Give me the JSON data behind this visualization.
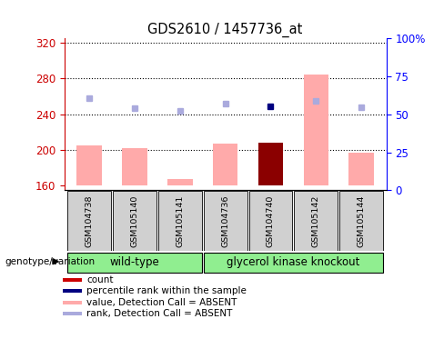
{
  "title": "GDS2610 / 1457736_at",
  "samples": [
    "GSM104738",
    "GSM105140",
    "GSM105141",
    "GSM104736",
    "GSM104740",
    "GSM105142",
    "GSM105144"
  ],
  "bar_values": [
    205,
    202,
    168,
    207,
    208,
    285,
    197
  ],
  "bar_colors": [
    "#ffaaaa",
    "#ffaaaa",
    "#ffaaaa",
    "#ffaaaa",
    "#8b0000",
    "#ffaaaa",
    "#ffaaaa"
  ],
  "rank_dots": [
    258,
    247,
    244,
    252,
    249,
    255,
    248
  ],
  "rank_dot_colors": [
    "#aaaadd",
    "#aaaadd",
    "#aaaadd",
    "#aaaadd",
    "#000080",
    "#aaaadd",
    "#aaaadd"
  ],
  "ylim_left": [
    155,
    325
  ],
  "ylim_right": [
    0,
    100
  ],
  "yticks_left": [
    160,
    200,
    240,
    280,
    320
  ],
  "yticks_right": [
    0,
    25,
    50,
    75,
    100
  ],
  "ytick_labels_right": [
    "0",
    "25",
    "50",
    "75",
    "100%"
  ],
  "group1_label": "wild-type",
  "group2_label": "glycerol kinase knockout",
  "group1_indices": [
    0,
    1,
    2
  ],
  "group2_indices": [
    3,
    4,
    5,
    6
  ],
  "group_label_left": "genotype/variation",
  "legend_items": [
    {
      "color": "#cc0000",
      "label": "count",
      "marker": "square"
    },
    {
      "color": "#000080",
      "label": "percentile rank within the sample",
      "marker": "square"
    },
    {
      "color": "#ffaaaa",
      "label": "value, Detection Call = ABSENT",
      "marker": "square"
    },
    {
      "color": "#aaaadd",
      "label": "rank, Detection Call = ABSENT",
      "marker": "square"
    }
  ],
  "plot_bg": "#ffffff",
  "grid_color": "#000000",
  "bar_width": 0.55
}
